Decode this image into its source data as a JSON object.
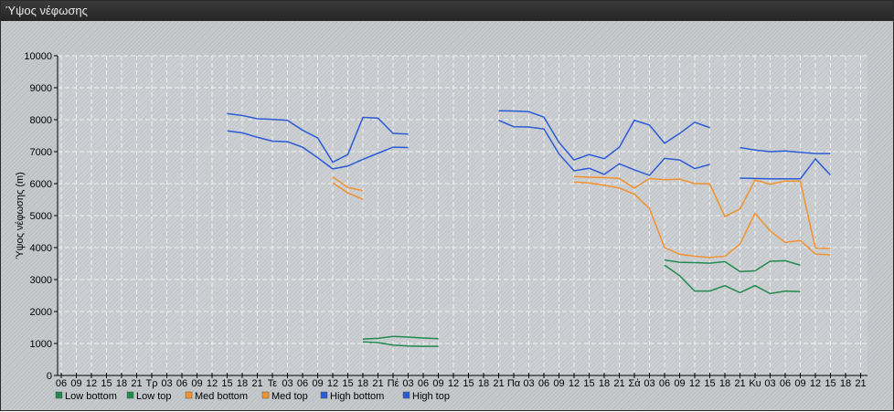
{
  "window": {
    "title": "Ύψος νέφωσης"
  },
  "chart_data": {
    "type": "line",
    "title": "",
    "ylabel": "Ύψος νέφωσης (m)",
    "xlabel": "",
    "ylim": [
      0,
      10000
    ],
    "yticks": [
      0,
      1000,
      2000,
      3000,
      4000,
      5000,
      6000,
      7000,
      8000,
      9000,
      10000
    ],
    "grid": true,
    "legend_position": "bottom-left",
    "x": [
      "06",
      "09",
      "12",
      "15",
      "18",
      "21",
      "Τρ",
      "03",
      "06",
      "09",
      "12",
      "15",
      "18",
      "21",
      "Τε",
      "03",
      "06",
      "09",
      "12",
      "15",
      "18",
      "21",
      "Πέ",
      "03",
      "06",
      "09",
      "12",
      "15",
      "18",
      "21",
      "Πα",
      "03",
      "06",
      "09",
      "12",
      "15",
      "18",
      "21",
      "Σά",
      "03",
      "06",
      "09",
      "12",
      "15",
      "18",
      "21",
      "Κυ",
      "03",
      "06",
      "09",
      "12",
      "15",
      "18",
      "21"
    ],
    "series": [
      {
        "name": "Low bottom",
        "color": "#1f8a4c",
        "values": [
          null,
          null,
          null,
          null,
          null,
          null,
          null,
          null,
          null,
          null,
          null,
          null,
          null,
          null,
          null,
          null,
          null,
          null,
          null,
          null,
          1050,
          1030,
          950,
          920,
          910,
          910,
          null,
          null,
          null,
          null,
          null,
          null,
          null,
          null,
          null,
          null,
          null,
          null,
          null,
          null,
          3450,
          3120,
          2640,
          2640,
          2810,
          2590,
          2810,
          2560,
          2640,
          2620,
          null,
          null,
          null,
          null
        ]
      },
      {
        "name": "Low top",
        "color": "#1f8a4c",
        "values": [
          null,
          null,
          null,
          null,
          null,
          null,
          null,
          null,
          null,
          null,
          null,
          null,
          null,
          null,
          null,
          null,
          null,
          null,
          null,
          null,
          1140,
          1160,
          1220,
          1200,
          1170,
          1150,
          null,
          null,
          null,
          null,
          null,
          null,
          null,
          null,
          null,
          null,
          null,
          null,
          null,
          null,
          3610,
          3540,
          3530,
          3510,
          3560,
          3250,
          3270,
          3570,
          3590,
          3450,
          null,
          null,
          null,
          null
        ]
      },
      {
        "name": "Med bottom",
        "color": "#f0922e",
        "values": [
          null,
          null,
          null,
          null,
          null,
          null,
          null,
          null,
          null,
          null,
          null,
          null,
          null,
          null,
          null,
          null,
          null,
          null,
          6020,
          5710,
          5510,
          null,
          null,
          null,
          null,
          null,
          null,
          null,
          null,
          null,
          null,
          null,
          null,
          null,
          6050,
          6020,
          5950,
          5860,
          5670,
          5220,
          4000,
          3790,
          3730,
          3690,
          3730,
          4110,
          5070,
          4520,
          4160,
          4220,
          3800,
          3770,
          null,
          null
        ]
      },
      {
        "name": "Med top",
        "color": "#f0922e",
        "values": [
          null,
          null,
          null,
          null,
          null,
          null,
          null,
          null,
          null,
          null,
          null,
          null,
          null,
          null,
          null,
          null,
          null,
          null,
          6210,
          5880,
          5780,
          null,
          null,
          null,
          null,
          null,
          null,
          null,
          null,
          null,
          null,
          null,
          null,
          null,
          6220,
          6200,
          6190,
          6160,
          5860,
          6160,
          6120,
          6140,
          6000,
          5990,
          4970,
          5210,
          6110,
          5980,
          6080,
          6080,
          3980,
          3970,
          null,
          null
        ]
      },
      {
        "name": "High bottom",
        "color": "#2a5bd7",
        "values": [
          null,
          null,
          null,
          null,
          null,
          null,
          null,
          null,
          null,
          null,
          null,
          7650,
          7590,
          7450,
          7330,
          7310,
          7140,
          6810,
          6460,
          6550,
          6760,
          6950,
          7140,
          7130,
          null,
          null,
          null,
          null,
          null,
          7980,
          7780,
          7770,
          7710,
          6930,
          6400,
          6480,
          6290,
          6620,
          6430,
          6260,
          6790,
          6740,
          6470,
          6600,
          null,
          6170,
          6160,
          6150,
          6150,
          6150,
          6770,
          6270,
          null,
          null
        ]
      },
      {
        "name": "High top",
        "color": "#2a5bd7",
        "values": [
          null,
          null,
          null,
          null,
          null,
          null,
          null,
          null,
          null,
          null,
          null,
          8190,
          8130,
          8030,
          8010,
          7980,
          7670,
          7430,
          6670,
          6910,
          8070,
          8050,
          7570,
          7550,
          null,
          null,
          null,
          null,
          null,
          8280,
          8270,
          8250,
          8080,
          7290,
          6740,
          6910,
          6780,
          7140,
          7980,
          7830,
          7260,
          7570,
          7920,
          7750,
          null,
          7130,
          7050,
          7000,
          7020,
          6980,
          6940,
          6940,
          null,
          null
        ]
      }
    ]
  }
}
